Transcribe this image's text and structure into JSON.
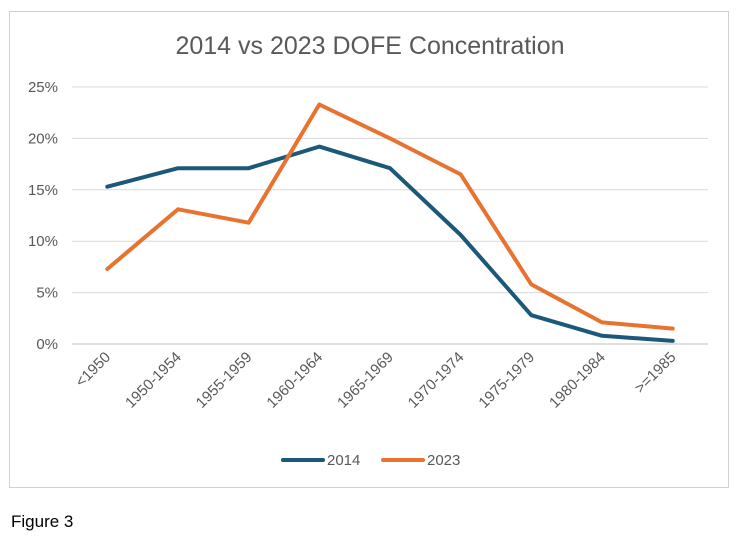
{
  "chart_data": {
    "type": "line",
    "title": "2014 vs 2023 DOFE Concentration",
    "xlabel": "",
    "ylabel": "",
    "categories": [
      "<1950",
      "1950-1954",
      "1955-1959",
      "1960-1964",
      "1965-1969",
      "1970-1974",
      "1975-1979",
      "1980-1984",
      ">=1985"
    ],
    "yticks": [
      "0%",
      "5%",
      "10%",
      "15%",
      "20%",
      "25%"
    ],
    "ylim": [
      0,
      25
    ],
    "grid": true,
    "legend_position": "bottom",
    "series": [
      {
        "name": "2014",
        "color": "#1b5879",
        "values": [
          15.3,
          17.1,
          17.1,
          19.2,
          17.1,
          10.6,
          2.8,
          0.8,
          0.3
        ]
      },
      {
        "name": "2023",
        "color": "#e87331",
        "values": [
          7.3,
          13.1,
          11.8,
          23.3,
          20.0,
          16.5,
          5.8,
          2.1,
          1.5
        ]
      }
    ]
  },
  "caption": "Figure 3"
}
